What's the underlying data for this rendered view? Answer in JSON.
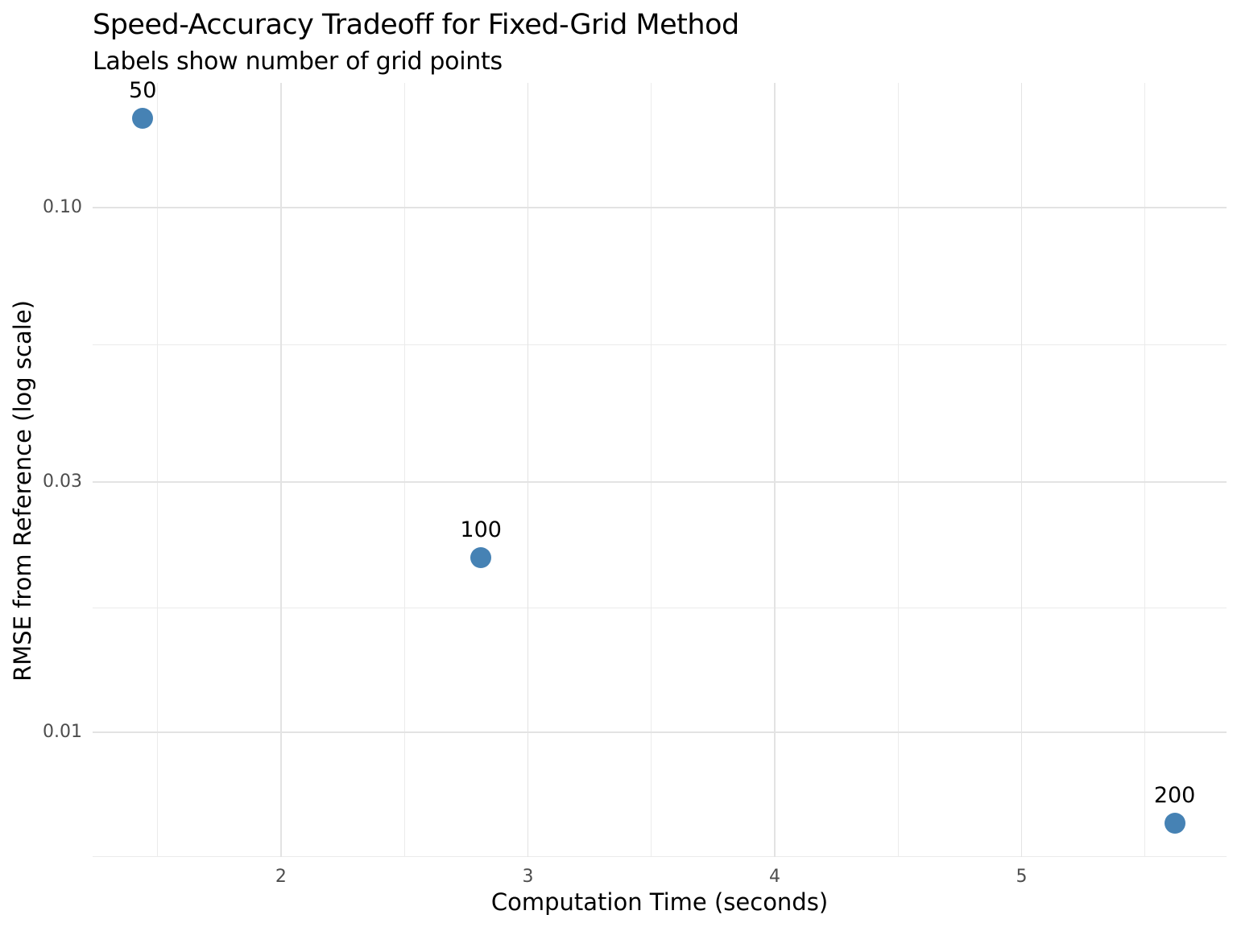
{
  "chart_data": {
    "type": "scatter",
    "title": "Speed-Accuracy Tradeoff for Fixed-Grid Method",
    "subtitle": "Labels show number of grid points",
    "xlabel": "Computation Time (seconds)",
    "ylabel": "RMSE from Reference (log scale)",
    "x_scale": "linear",
    "y_scale": "log10",
    "xlim": [
      1.237,
      5.83
    ],
    "ylim": [
      0.00578,
      0.1728
    ],
    "x_major_ticks": [
      {
        "value": 2,
        "label": "2"
      },
      {
        "value": 3,
        "label": "3"
      },
      {
        "value": 4,
        "label": "4"
      },
      {
        "value": 5,
        "label": "5"
      }
    ],
    "x_minor_ticks": [
      1.5,
      2.5,
      3.5,
      4.5,
      5.5
    ],
    "y_major_ticks": [
      {
        "value": 0.1,
        "label": "0.10"
      },
      {
        "value": 0.03,
        "label": "0.03"
      },
      {
        "value": 0.01,
        "label": "0.01"
      }
    ],
    "y_minor_ticks": [
      0.0548,
      0.0173,
      0.00578
    ],
    "grid": "major and minor gridlines, light gray, no axis lines, no tick marks",
    "legend": "none",
    "series": [
      {
        "name": "fixed-grid method",
        "points": [
          {
            "label": "50",
            "x": 1.44,
            "y": 0.148
          },
          {
            "label": "100",
            "x": 2.81,
            "y": 0.0215
          },
          {
            "label": "200",
            "x": 5.62,
            "y": 0.0067
          }
        ]
      }
    ],
    "colors": {
      "background": "#ffffff",
      "point": "#4682b4",
      "grid_major": "#e3e3e3",
      "grid_minor": "#ebebeb",
      "tick_label": "#4d4d4d",
      "axis_title": "#000000",
      "title": "#000000"
    }
  }
}
